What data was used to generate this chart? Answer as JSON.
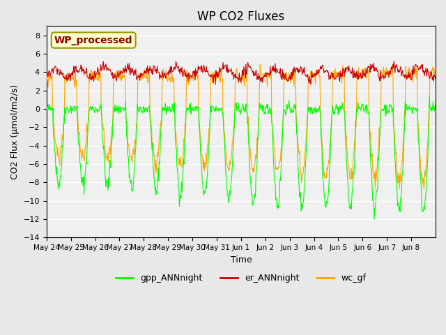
{
  "title": "WP CO2 Fluxes",
  "ylabel": "CO2 Flux (μmol/m2/s)",
  "xlabel": "Time",
  "ylim": [
    -14,
    9
  ],
  "yticks": [
    -14,
    -12,
    -10,
    -8,
    -6,
    -4,
    -2,
    0,
    2,
    4,
    6,
    8
  ],
  "n_days": 16,
  "n_points": 768,
  "tick_labels": [
    "May 24",
    "May 25",
    "May 26",
    "May 27",
    "May 28",
    "May 29",
    "May 30",
    "May 31",
    "Jun 1",
    "Jun 2",
    "Jun 3",
    "Jun 4",
    "Jun 5",
    "Jun 6",
    "Jun 7",
    "Jun 8"
  ],
  "color_gpp": "#00FF00",
  "color_er": "#CC0000",
  "color_wc": "#FFA500",
  "legend_label": "WP_processed",
  "legend_text_color": "#8B0000",
  "legend_bg_color": "#FFFFCC",
  "bg_color": "#E8E8E8",
  "plot_bg_color": "#F0F0F0",
  "grid_color": "#FFFFFF",
  "line_width": 0.8,
  "fig_width": 6.4,
  "fig_height": 4.8
}
